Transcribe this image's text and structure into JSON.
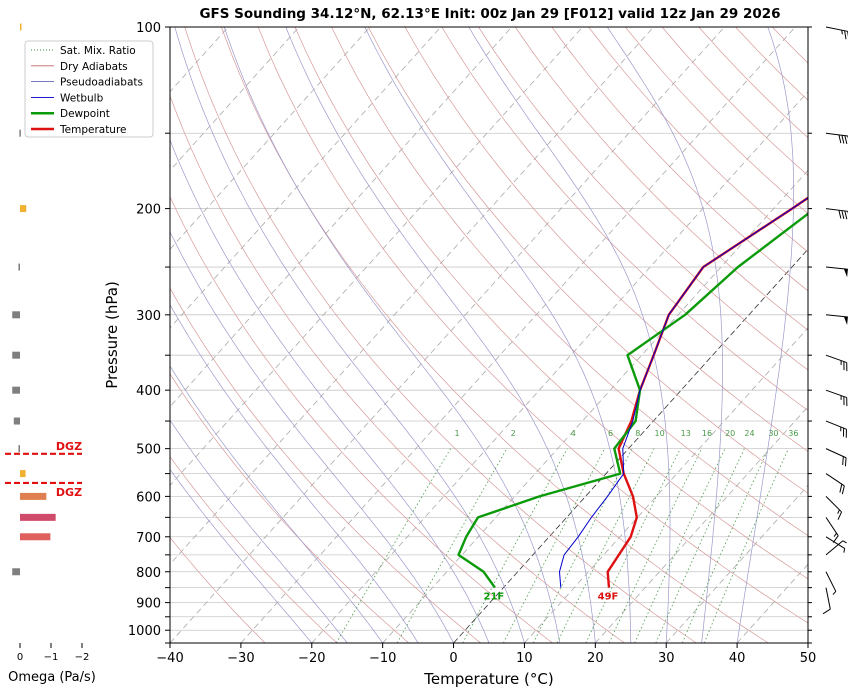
{
  "chart_data": {
    "type": "skew-t",
    "title": "GFS Sounding 34.12°N, 62.13°E Init: 00z Jan 29 [F012] valid 12z Jan 29 2026",
    "xlabel": "Temperature (°C)",
    "ylabel": "Pressure (hPa)",
    "xlim": [
      -40,
      50
    ],
    "ylim": [
      1050,
      100
    ],
    "y_scale": "log",
    "grid": true,
    "legend_position": "upper left",
    "x_ticks": [
      -40,
      -30,
      -20,
      -10,
      0,
      10,
      20,
      30,
      40,
      50
    ],
    "x_tick_labels": [
      "−40",
      "−30",
      "−20",
      "−10",
      "0",
      "10",
      "20",
      "30",
      "40",
      "50"
    ],
    "y_ticks": [
      100,
      200,
      300,
      400,
      500,
      600,
      700,
      800,
      900,
      1000
    ],
    "y_tick_labels": [
      "100",
      "200",
      "300",
      "400",
      "500",
      "600",
      "700",
      "800",
      "900",
      "1000"
    ],
    "legend": [
      {
        "name": "Sat. Mix. Ratio",
        "color": "#3a8a3a",
        "style": "dotted"
      },
      {
        "name": "Dry Adiabats",
        "color": "#c26666",
        "style": "solid"
      },
      {
        "name": "Pseudoadiabats",
        "color": "#6666bb",
        "style": "solid"
      },
      {
        "name": "Wetbulb",
        "color": "#0000cc",
        "style": "solid"
      },
      {
        "name": "Dewpoint",
        "color": "#0a9a0a",
        "style": "solid"
      },
      {
        "name": "Temperature",
        "color": "#dd1111",
        "style": "solid"
      }
    ],
    "mixing_ratio_labels": [
      "1",
      "2",
      "4",
      "6",
      "8",
      "10",
      "13",
      "16",
      "20",
      "24",
      "30",
      "36"
    ],
    "series": [
      {
        "name": "Temperature",
        "color": "#dd1111",
        "points": [
          [
            850,
            14.9
          ],
          [
            800,
            12.7
          ],
          [
            700,
            11.5
          ],
          [
            650,
            9.9
          ],
          [
            600,
            6.7
          ],
          [
            550,
            2.5
          ],
          [
            500,
            -1.4
          ],
          [
            450,
            -3.1
          ],
          [
            400,
            -5.8
          ],
          [
            350,
            -8.3
          ],
          [
            300,
            -11.3
          ],
          [
            250,
            -12.5
          ],
          [
            200,
            -7.4
          ],
          [
            150,
            -1.2
          ],
          [
            100,
            2.6
          ]
        ]
      },
      {
        "name": "Dewpoint",
        "color": "#0a9a0a",
        "points": [
          [
            850,
            -1.2
          ],
          [
            800,
            -4.8
          ],
          [
            750,
            -10.5
          ],
          [
            700,
            -11.7
          ],
          [
            650,
            -12.5
          ],
          [
            600,
            -6.5
          ],
          [
            550,
            2.0
          ],
          [
            500,
            -2.0
          ],
          [
            450,
            -2.5
          ],
          [
            400,
            -5.8
          ],
          [
            350,
            -12.0
          ],
          [
            300,
            -9.0
          ],
          [
            250,
            -7.6
          ],
          [
            200,
            -4.2
          ],
          [
            150,
            1.5
          ],
          [
            100,
            10.2
          ]
        ]
      },
      {
        "name": "Wetbulb",
        "color": "#0000cc",
        "points": [
          [
            850,
            8.1
          ],
          [
            800,
            5.9
          ],
          [
            750,
            4.4
          ],
          [
            700,
            4.1
          ],
          [
            650,
            3.5
          ],
          [
            600,
            3.1
          ],
          [
            550,
            2.5
          ],
          [
            500,
            -0.8
          ],
          [
            450,
            -2.9
          ],
          [
            400,
            -5.8
          ],
          [
            350,
            -8.3
          ],
          [
            300,
            -11.3
          ],
          [
            250,
            -12.5
          ],
          [
            200,
            -7.4
          ],
          [
            150,
            -1.2
          ],
          [
            100,
            2.6
          ]
        ]
      }
    ],
    "surface_temperature_label": "49F",
    "surface_dewpoint_label": "21F",
    "dgz_label": "DGZ",
    "dgz_pressures": [
      510,
      570
    ],
    "omega": {
      "xlabel": "Omega (Pa/s)",
      "x_ticks": [
        0,
        -1,
        -2
      ],
      "x_tick_labels": [
        "0",
        "−1",
        "−2"
      ],
      "bars": [
        {
          "p": 100,
          "value": -0.02,
          "color": "#f0b030"
        },
        {
          "p": 150,
          "value": 0.02,
          "color": "#7f7f7f"
        },
        {
          "p": 200,
          "value": -0.2,
          "color": "#f0b030"
        },
        {
          "p": 250,
          "value": 0.05,
          "color": "#7f7f7f"
        },
        {
          "p": 300,
          "value": 0.25,
          "color": "#7f7f7f"
        },
        {
          "p": 350,
          "value": 0.25,
          "color": "#7f7f7f"
        },
        {
          "p": 400,
          "value": 0.25,
          "color": "#7f7f7f"
        },
        {
          "p": 450,
          "value": 0.2,
          "color": "#7f7f7f"
        },
        {
          "p": 500,
          "value": 0.05,
          "color": "#7f7f7f"
        },
        {
          "p": 550,
          "value": -0.18,
          "color": "#f0b030"
        },
        {
          "p": 600,
          "value": -0.85,
          "color": "#e08050"
        },
        {
          "p": 650,
          "value": -1.15,
          "color": "#d04a6a"
        },
        {
          "p": 700,
          "value": -0.98,
          "color": "#e06060"
        },
        {
          "p": 800,
          "value": 0.25,
          "color": "#7f7f7f"
        }
      ]
    },
    "wind_barbs": [
      {
        "p": 100,
        "u": -25,
        "v": 5
      },
      {
        "p": 150,
        "u": -40,
        "v": 5
      },
      {
        "p": 200,
        "u": -40,
        "v": 5
      },
      {
        "p": 250,
        "u": -50,
        "v": 5
      },
      {
        "p": 300,
        "u": -50,
        "v": 5
      },
      {
        "p": 350,
        "u": -28,
        "v": 10
      },
      {
        "p": 400,
        "u": -28,
        "v": 10
      },
      {
        "p": 450,
        "u": -25,
        "v": 10
      },
      {
        "p": 500,
        "u": -22,
        "v": 10
      },
      {
        "p": 550,
        "u": -18,
        "v": 12
      },
      {
        "p": 600,
        "u": -14,
        "v": 14
      },
      {
        "p": 650,
        "u": -10,
        "v": 15
      },
      {
        "p": 700,
        "u": -8,
        "v": 5
      },
      {
        "p": 750,
        "u": -6,
        "v": -5
      },
      {
        "p": 800,
        "u": -4,
        "v": 8
      },
      {
        "p": 850,
        "u": -2,
        "v": 10
      }
    ]
  }
}
